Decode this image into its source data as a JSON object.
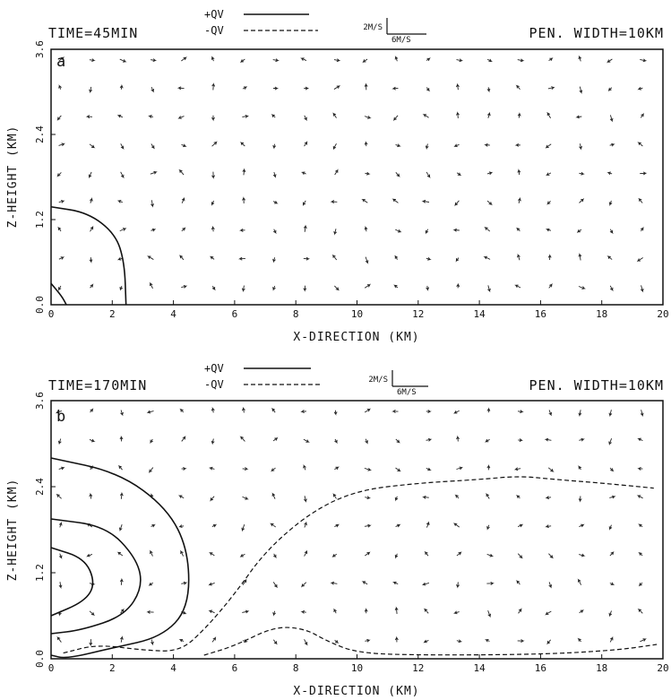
{
  "chart_data": [
    {
      "type": "vector-field-contour",
      "panel_label": "a",
      "time_label": "TIME=45MIN",
      "pen_width_label": "PEN. WIDTH=10KM",
      "legend": [
        {
          "label": "+QV",
          "style": "solid"
        },
        {
          "label": "-QV",
          "style": "dashed"
        }
      ],
      "vector_scale": {
        "vertical": "2M/S",
        "horizontal": "6M/S"
      },
      "xlabel": "X-DIRECTION (KM)",
      "ylabel": "Z-HEIGHT (KM)",
      "xlim": [
        0,
        20
      ],
      "ylim": [
        0,
        3.6
      ],
      "xticks": [
        "0",
        "2",
        "4",
        "6",
        "8",
        "10",
        "12",
        "14",
        "16",
        "18",
        "20"
      ],
      "yticks": [
        "0.0",
        "1.2",
        "2.4",
        "3.6"
      ],
      "contours": [
        {
          "sign": "+",
          "points": [
            [
              0,
              1.38
            ],
            [
              1.2,
              1.3
            ],
            [
              2.1,
              1.0
            ],
            [
              2.4,
              0.6
            ],
            [
              2.45,
              0.0
            ]
          ]
        },
        {
          "sign": "+",
          "points": [
            [
              0,
              0.3
            ],
            [
              0.35,
              0.12
            ],
            [
              0.5,
              0.0
            ]
          ]
        }
      ]
    },
    {
      "type": "vector-field-contour",
      "panel_label": "b",
      "time_label": "TIME=170MIN",
      "pen_width_label": "PEN. WIDTH=10KM",
      "legend": [
        {
          "label": "+QV",
          "style": "solid"
        },
        {
          "label": "-QV",
          "style": "dashed"
        }
      ],
      "vector_scale": {
        "vertical": "2M/S",
        "horizontal": "6M/S"
      },
      "xlabel": "X-DIRECTION (KM)",
      "ylabel": "Z-HEIGHT (KM)",
      "xlim": [
        0,
        20
      ],
      "ylim": [
        0,
        3.6
      ],
      "xticks": [
        "0",
        "2",
        "4",
        "6",
        "8",
        "10",
        "12",
        "14",
        "16",
        "18",
        "20"
      ],
      "yticks": [
        "0.0",
        "1.2",
        "2.4",
        "3.6"
      ],
      "contours": [
        {
          "sign": "+",
          "points": [
            [
              0,
              2.8
            ],
            [
              2.2,
              2.6
            ],
            [
              3.8,
              2.1
            ],
            [
              4.5,
              1.5
            ],
            [
              4.5,
              0.7
            ],
            [
              3.6,
              0.3
            ],
            [
              2.0,
              0.15
            ],
            [
              0.5,
              0.0
            ],
            [
              0,
              0.05
            ]
          ]
        },
        {
          "sign": "+",
          "points": [
            [
              0,
              1.95
            ],
            [
              1.8,
              1.85
            ],
            [
              2.8,
              1.4
            ],
            [
              3.0,
              1.0
            ],
            [
              2.4,
              0.6
            ],
            [
              1.0,
              0.4
            ],
            [
              0,
              0.35
            ]
          ]
        },
        {
          "sign": "+",
          "points": [
            [
              0,
              1.55
            ],
            [
              1.1,
              1.4
            ],
            [
              1.45,
              1.05
            ],
            [
              1.1,
              0.8
            ],
            [
              0,
              0.6
            ]
          ]
        },
        {
          "sign": "-",
          "points": [
            [
              0.4,
              0.08
            ],
            [
              1.5,
              0.2
            ],
            [
              3.0,
              0.12
            ],
            [
              4.2,
              0.1
            ],
            [
              5.0,
              0.4
            ],
            [
              6.0,
              0.9
            ],
            [
              7.0,
              1.5
            ],
            [
              8.5,
              2.05
            ],
            [
              10.0,
              2.35
            ],
            [
              12.0,
              2.45
            ],
            [
              14.0,
              2.5
            ],
            [
              15.3,
              2.55
            ],
            [
              16.5,
              2.5
            ],
            [
              18.0,
              2.45
            ],
            [
              19.7,
              2.38
            ]
          ]
        },
        {
          "sign": "-",
          "points": [
            [
              5.0,
              0.05
            ],
            [
              6.0,
              0.18
            ],
            [
              7.3,
              0.45
            ],
            [
              8.3,
              0.42
            ],
            [
              9.0,
              0.25
            ],
            [
              10.0,
              0.08
            ],
            [
              12.0,
              0.05
            ],
            [
              16.0,
              0.06
            ],
            [
              18.5,
              0.12
            ],
            [
              19.8,
              0.2
            ]
          ]
        }
      ]
    }
  ]
}
